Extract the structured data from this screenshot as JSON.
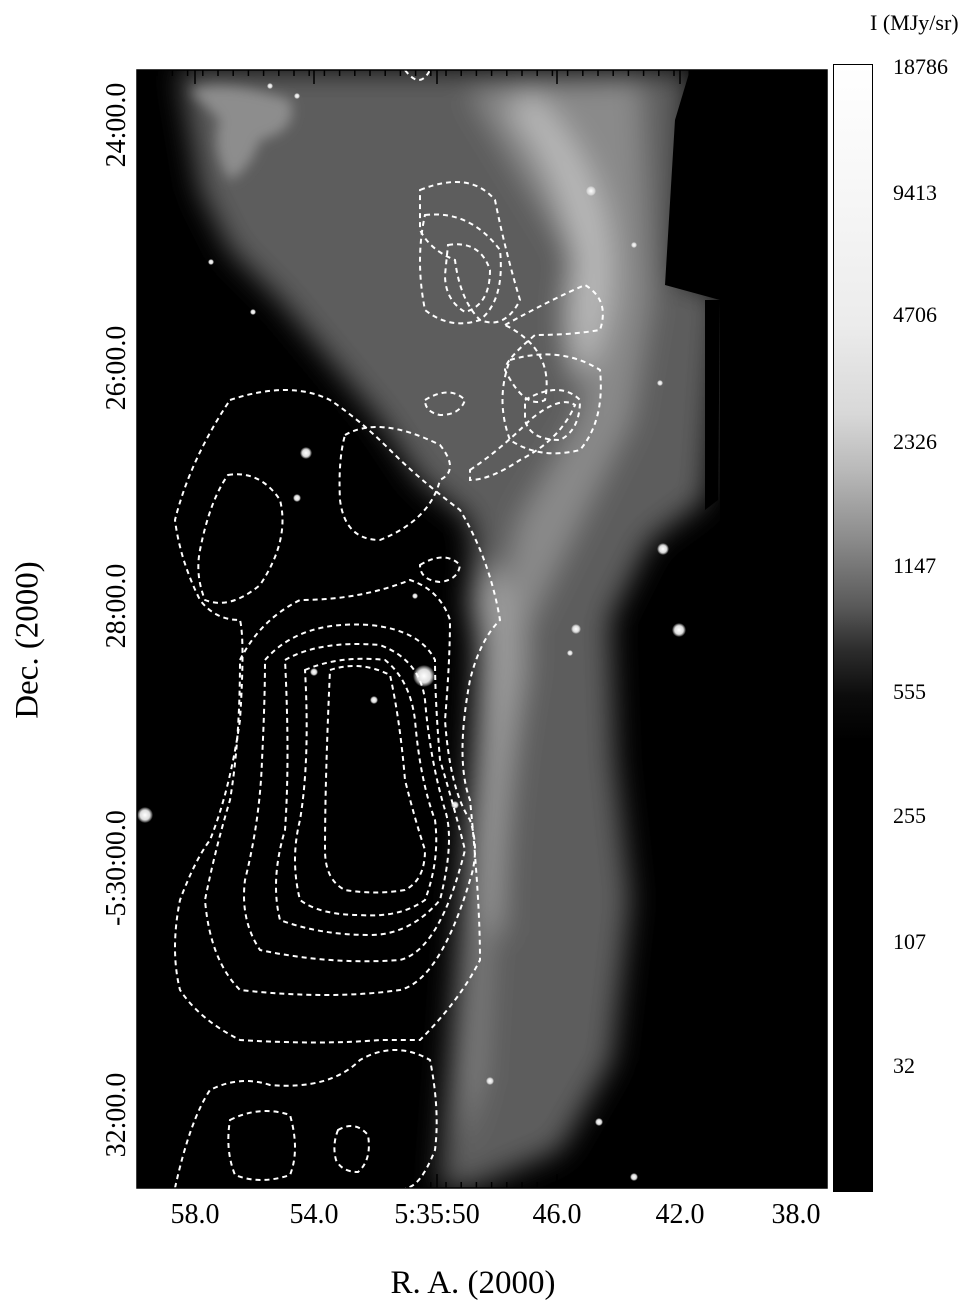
{
  "colorbar": {
    "title": "I (MJy/sr)",
    "labels": [
      "18786",
      "9413",
      "4706",
      "2326",
      "1147",
      "555",
      "255",
      "107",
      "32"
    ]
  },
  "axes": {
    "xlabel": "R. A. (2000)",
    "ylabel": "Dec. (2000)",
    "x_ticks": [
      "58.0",
      "54.0",
      "5:35:50",
      "46.0",
      "42.0",
      "38.0"
    ],
    "y_ticks": [
      "24:00.0",
      "26:00.0",
      "28:00.0",
      "-5:30:00.0",
      "32:00.0"
    ]
  },
  "colors": {
    "background": "#ffffff",
    "image_base": "#000000",
    "contour": "#ffffff"
  }
}
